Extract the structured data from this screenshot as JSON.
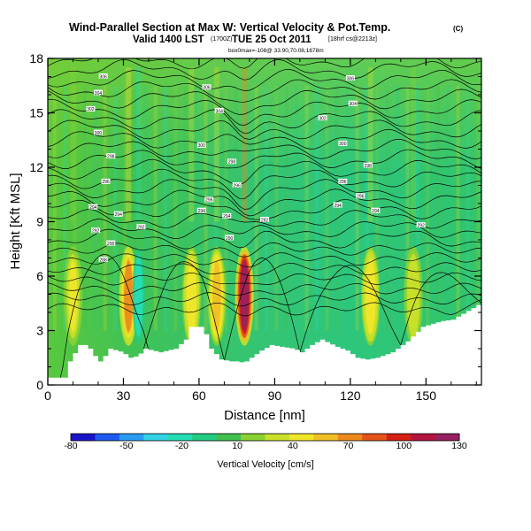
{
  "header": {
    "title": "Wind-Parallel Section at Max W: Vertical Velocity & Pot.Temp.",
    "title_mark": "(C)",
    "subtitle_main": "Valid 1400 LST",
    "subtitle_utc": "(1700Z)",
    "subtitle_date": "TUE 25 Oct 2011",
    "subtitle_run": "[18hrf cs@2213z]",
    "info_line": "box0max=-108@ 33.90,70.08,1678m"
  },
  "chart_data": {
    "type": "heatmap",
    "title": "Wind-Parallel Section at Max W: Vertical Velocity & Pot.Temp.",
    "xlabel": "Distance [nm]",
    "ylabel": "Height [Kft MSL]",
    "xlim": [
      0,
      172
    ],
    "ylim": [
      0,
      18
    ],
    "x_ticks": [
      0,
      30,
      60,
      90,
      120,
      150
    ],
    "y_ticks": [
      0,
      3,
      6,
      9,
      12,
      15,
      18
    ],
    "colorbar": {
      "label": "Vertical Velocity [cm/s]",
      "tick_labels": [
        "-80",
        "-50",
        "-20",
        "10",
        "40",
        "70",
        "100",
        "130"
      ],
      "range": [
        -80,
        130
      ],
      "colors": [
        "#1a14c8",
        "#1f5af0",
        "#2a9cf4",
        "#33d2e6",
        "#26dcb4",
        "#22cc82",
        "#40c050",
        "#8ad232",
        "#c8e02a",
        "#f0e62a",
        "#f0be26",
        "#ec8a1e",
        "#e4541a",
        "#d42014",
        "#b41440",
        "#962060"
      ]
    },
    "vertical_velocity_columns": [
      {
        "x": 10,
        "peak": 40
      },
      {
        "x": 32,
        "peak": 70
      },
      {
        "x": 36,
        "peak": -25
      },
      {
        "x": 57,
        "peak": 45
      },
      {
        "x": 67,
        "peak": 55
      },
      {
        "x": 78,
        "peak": 120
      },
      {
        "x": 128,
        "peak": 45
      },
      {
        "x": 145,
        "peak": 38
      }
    ],
    "terrain_kft": [
      [
        0,
        0.4
      ],
      [
        6,
        0.4
      ],
      [
        8,
        1.3
      ],
      [
        12,
        2.2
      ],
      [
        15,
        2.2
      ],
      [
        18,
        1.6
      ],
      [
        20,
        1.3
      ],
      [
        22,
        1.6
      ],
      [
        24,
        2.0
      ],
      [
        29,
        1.8
      ],
      [
        32,
        1.5
      ],
      [
        35,
        1.6
      ],
      [
        38,
        2.0
      ],
      [
        44,
        1.8
      ],
      [
        50,
        2.0
      ],
      [
        54,
        2.5
      ],
      [
        56,
        3.2
      ],
      [
        61,
        3.2
      ],
      [
        64,
        2.0
      ],
      [
        68,
        1.4
      ],
      [
        72,
        1.3
      ],
      [
        75,
        1.3
      ],
      [
        77,
        1.2
      ],
      [
        80,
        1.5
      ],
      [
        84,
        1.9
      ],
      [
        88,
        2.2
      ],
      [
        92,
        2.1
      ],
      [
        97,
        2.0
      ],
      [
        100,
        1.8
      ],
      [
        104,
        2.2
      ],
      [
        108,
        2.5
      ],
      [
        114,
        2.1
      ],
      [
        118,
        1.9
      ],
      [
        122,
        1.5
      ],
      [
        126,
        1.4
      ],
      [
        130,
        1.5
      ],
      [
        136,
        1.8
      ],
      [
        142,
        2.4
      ],
      [
        148,
        3.2
      ],
      [
        155,
        3.5
      ],
      [
        160,
        3.6
      ],
      [
        165,
        4.0
      ],
      [
        170,
        4.4
      ],
      [
        172,
        4.5
      ]
    ],
    "isentrope_labels": [
      {
        "x": 22,
        "y": 17.0,
        "text": "306"
      },
      {
        "x": 20,
        "y": 16.1,
        "text": "304"
      },
      {
        "x": 17,
        "y": 15.2,
        "text": "302"
      },
      {
        "x": 20,
        "y": 13.9,
        "text": "300"
      },
      {
        "x": 25,
        "y": 12.6,
        "text": "298"
      },
      {
        "x": 23,
        "y": 11.2,
        "text": "296"
      },
      {
        "x": 18,
        "y": 9.8,
        "text": "294"
      },
      {
        "x": 19,
        "y": 8.5,
        "text": "292"
      },
      {
        "x": 25,
        "y": 7.8,
        "text": "290"
      },
      {
        "x": 22,
        "y": 6.9,
        "text": "288"
      },
      {
        "x": 28,
        "y": 9.4,
        "text": "294"
      },
      {
        "x": 37,
        "y": 8.7,
        "text": "292"
      },
      {
        "x": 63,
        "y": 16.4,
        "text": "306"
      },
      {
        "x": 68,
        "y": 15.1,
        "text": "304"
      },
      {
        "x": 61,
        "y": 13.2,
        "text": "300"
      },
      {
        "x": 73,
        "y": 12.3,
        "text": "298"
      },
      {
        "x": 75,
        "y": 11.0,
        "text": "296"
      },
      {
        "x": 64,
        "y": 10.2,
        "text": "296"
      },
      {
        "x": 61,
        "y": 9.6,
        "text": "294"
      },
      {
        "x": 71,
        "y": 9.3,
        "text": "294"
      },
      {
        "x": 86,
        "y": 9.1,
        "text": "292"
      },
      {
        "x": 72,
        "y": 8.1,
        "text": "290"
      },
      {
        "x": 120,
        "y": 16.9,
        "text": "306"
      },
      {
        "x": 121,
        "y": 15.5,
        "text": "304"
      },
      {
        "x": 109,
        "y": 14.7,
        "text": "302"
      },
      {
        "x": 117,
        "y": 13.3,
        "text": "300"
      },
      {
        "x": 127,
        "y": 12.1,
        "text": "298"
      },
      {
        "x": 117,
        "y": 11.2,
        "text": "296"
      },
      {
        "x": 124,
        "y": 10.4,
        "text": "296"
      },
      {
        "x": 115,
        "y": 9.9,
        "text": "294"
      },
      {
        "x": 130,
        "y": 9.6,
        "text": "294"
      },
      {
        "x": 148,
        "y": 8.8,
        "text": "292"
      }
    ]
  }
}
